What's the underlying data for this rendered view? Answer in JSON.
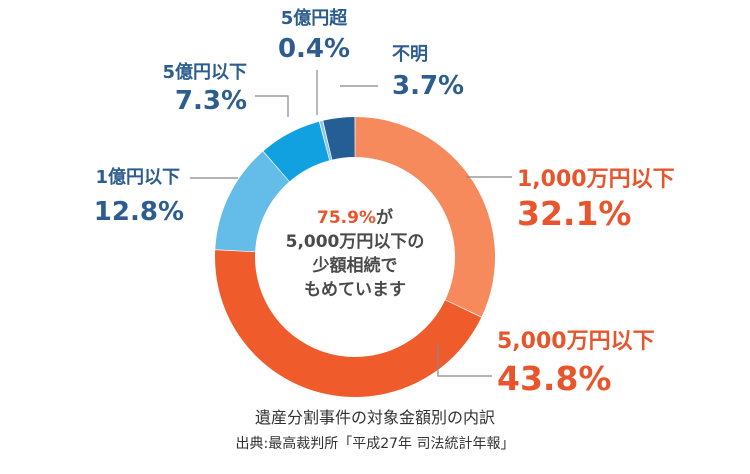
{
  "chart_data": {
    "type": "pie",
    "title": "遺産分割事件の対象金額別の内訳",
    "source": "出典:最高裁判所「平成27年 司法統計年報」",
    "center_text": {
      "highlight": "75.9%",
      "line1_rest": "が",
      "line2": "5,000万円以下の",
      "line3": "少額相続で",
      "line4": "もめています"
    },
    "slices": [
      {
        "label": "1,000万円以下",
        "value": 32.1,
        "value_text": "32.1%",
        "color": "#f68a5c"
      },
      {
        "label": "5,000万円以下",
        "value": 43.8,
        "value_text": "43.8%",
        "color": "#ef5b2b"
      },
      {
        "label": "1億円以下",
        "value": 12.8,
        "value_text": "12.8%",
        "color": "#63bde8"
      },
      {
        "label": "5億円以下",
        "value": 7.3,
        "value_text": "7.3%",
        "color": "#12a1e0"
      },
      {
        "label": "5億円超",
        "value": 0.4,
        "value_text": "0.4%",
        "color": "#8cc6e4"
      },
      {
        "label": "不明",
        "value": 3.7,
        "value_text": "3.7%",
        "color": "#255e95"
      }
    ],
    "label_colors": {
      "orange": "#e8552c",
      "blue": "#2d5d8f"
    },
    "leader_color": "#888888"
  }
}
